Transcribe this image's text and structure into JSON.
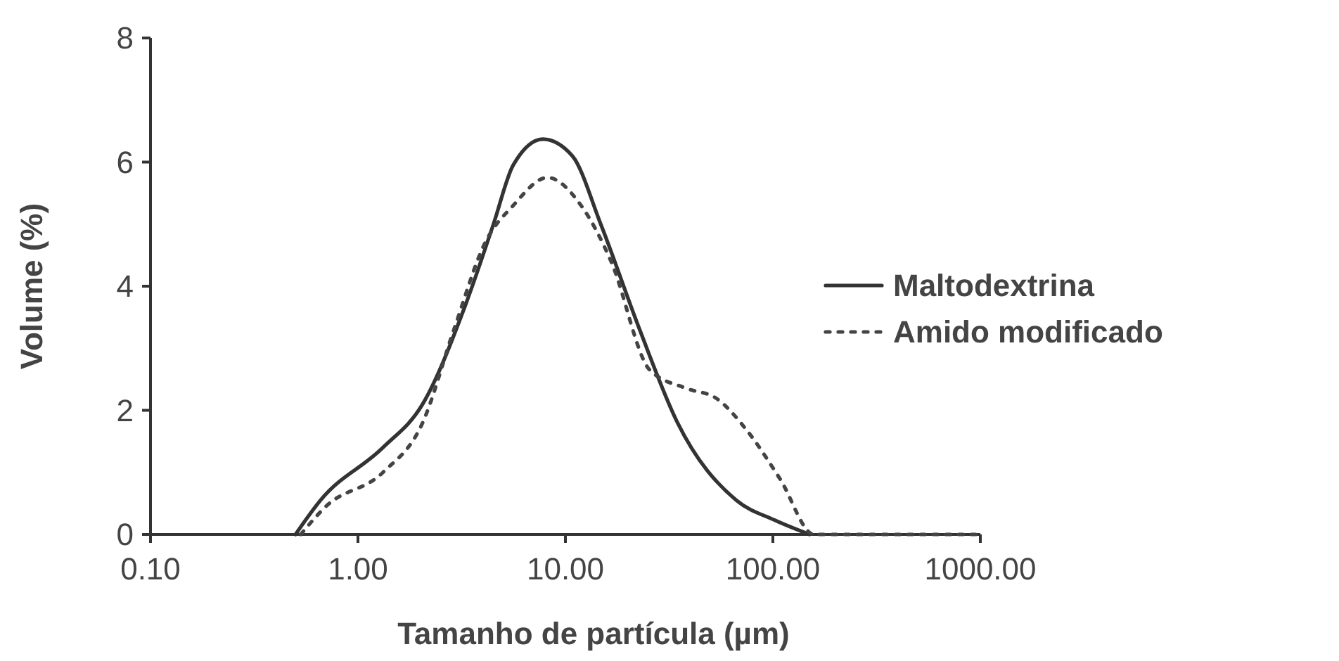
{
  "chart_data": {
    "type": "line",
    "xlabel": "Tamanho de partícula (µm)",
    "ylabel": "Volume (%)",
    "log": "x",
    "xlim": [
      0.1,
      1000
    ],
    "xticks": [
      {
        "value": 0.1,
        "label": "0.10"
      },
      {
        "value": 1,
        "label": "1.00"
      },
      {
        "value": 10,
        "label": "10.00"
      },
      {
        "value": 100,
        "label": "100.00"
      },
      {
        "value": 1000,
        "label": "1000.00"
      }
    ],
    "ylim": [
      0,
      8
    ],
    "yticks": [
      0,
      2,
      4,
      6,
      8
    ],
    "legend": "right",
    "grid": false,
    "series": [
      {
        "name": "Maltodextrina",
        "color": "#333333",
        "line_style": "solid",
        "x": [
          0.5,
          0.66,
          1.32,
          2.05,
          3.3,
          4.5,
          5.6,
          7.8,
          10.8,
          14.8,
          22.8,
          34.7,
          66.7,
          102,
          150
        ],
        "values": [
          0,
          0.55,
          1.4,
          2.1,
          3.7,
          5.0,
          5.95,
          6.37,
          6.1,
          5.0,
          3.3,
          1.8,
          0.55,
          0.23,
          0
        ]
      },
      {
        "name": "Amido modificado",
        "color": "#444444",
        "line_style": "dotted",
        "x": [
          0.53,
          0.7,
          1.32,
          2.05,
          2.9,
          4.1,
          5.6,
          8.2,
          11.9,
          16.6,
          25.5,
          38.6,
          53,
          74,
          108,
          158,
          955
        ],
        "values": [
          0,
          0.45,
          1.0,
          1.8,
          3.3,
          4.7,
          5.3,
          5.75,
          5.3,
          4.4,
          2.65,
          2.35,
          2.2,
          1.7,
          0.9,
          0,
          0
        ]
      }
    ]
  }
}
